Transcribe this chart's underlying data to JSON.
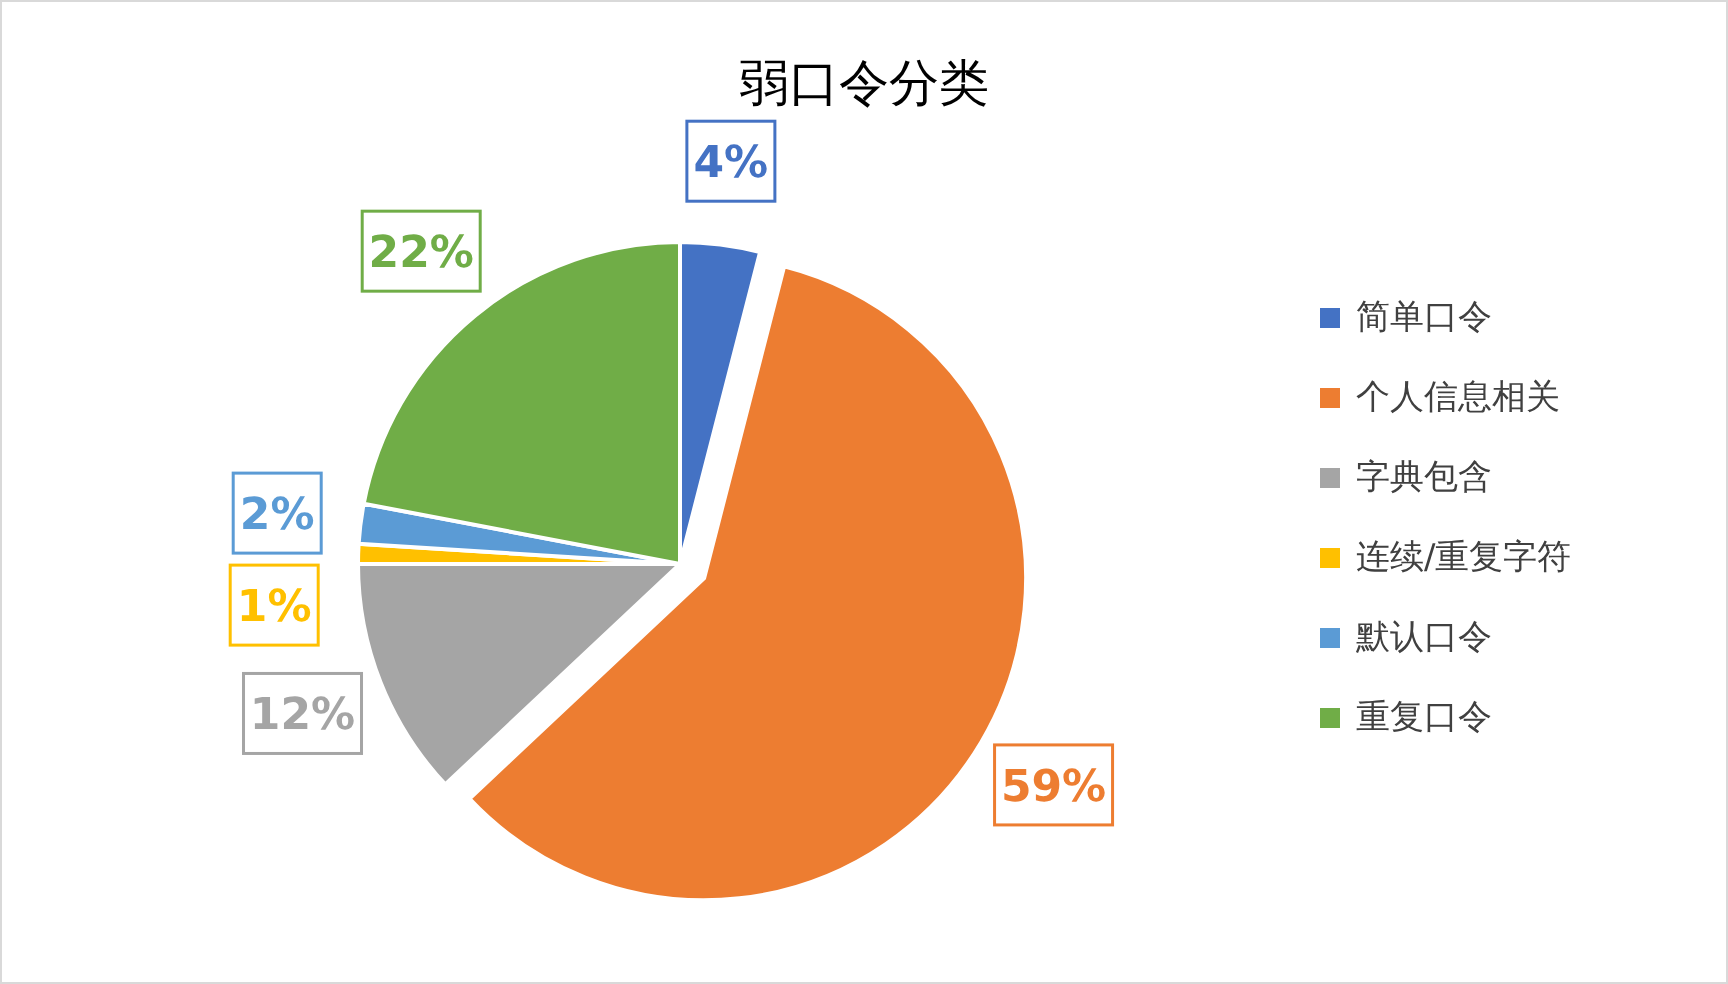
{
  "chart_data": {
    "type": "pie",
    "title": "弱口令分类",
    "categories": [
      "简单口令",
      "个人信息相关",
      "字典包含",
      "连续/重复字符",
      "默认口令",
      "重复口令"
    ],
    "values": [
      4,
      59,
      12,
      1,
      2,
      22
    ],
    "colors": [
      "#4472c4",
      "#ed7d31",
      "#a5a5a5",
      "#ffc000",
      "#5b9bd5",
      "#70ad47"
    ],
    "value_labels": [
      "4%",
      "59%",
      "12%",
      "1%",
      "2%",
      "22%"
    ],
    "legend": "right"
  }
}
